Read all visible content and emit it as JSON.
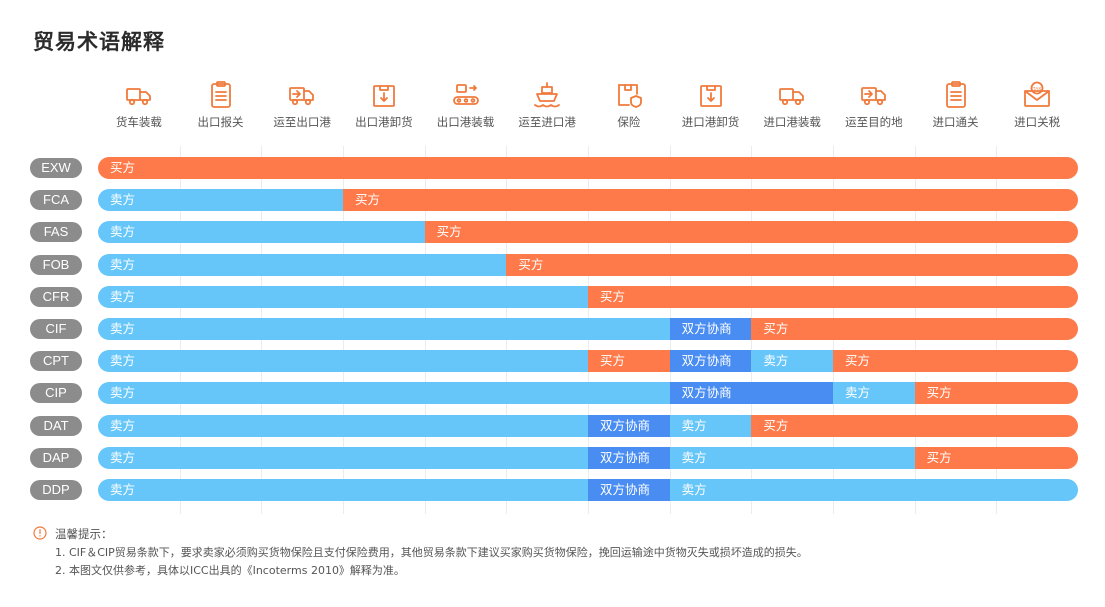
{
  "title": "贸易术语解释",
  "colors": {
    "seller": "#66c6f9",
    "buyer": "#ff7a4a",
    "both": "#4a8df2",
    "term_pill": "#8c8c8c",
    "icon": "#f07a3c"
  },
  "labels": {
    "seller": "卖方",
    "buyer": "买方",
    "both": "双方协商"
  },
  "steps": [
    {
      "label": "货车装载",
      "icon": "truck-icon"
    },
    {
      "label": "出口报关",
      "icon": "clipboard-icon"
    },
    {
      "label": "运至出口港",
      "icon": "truck-arrow-icon"
    },
    {
      "label": "出口港卸货",
      "icon": "box-down-icon"
    },
    {
      "label": "出口港装载",
      "icon": "conveyor-icon"
    },
    {
      "label": "运至进口港",
      "icon": "ship-icon"
    },
    {
      "label": "保险",
      "icon": "shield-box-icon"
    },
    {
      "label": "进口港卸货",
      "icon": "box-down-icon"
    },
    {
      "label": "进口港装载",
      "icon": "truck-icon"
    },
    {
      "label": "运至目的地",
      "icon": "truck-arrow-icon"
    },
    {
      "label": "进口通关",
      "icon": "clipboard-icon"
    },
    {
      "label": "进口关税",
      "icon": "tax-envelope-icon"
    }
  ],
  "terms": [
    {
      "code": "EXW",
      "segments": [
        [
          "buyer",
          12
        ]
      ]
    },
    {
      "code": "FCA",
      "segments": [
        [
          "seller",
          3
        ],
        [
          "buyer",
          9
        ]
      ]
    },
    {
      "code": "FAS",
      "segments": [
        [
          "seller",
          4
        ],
        [
          "buyer",
          8
        ]
      ]
    },
    {
      "code": "FOB",
      "segments": [
        [
          "seller",
          5
        ],
        [
          "buyer",
          7
        ]
      ]
    },
    {
      "code": "CFR",
      "segments": [
        [
          "seller",
          6
        ],
        [
          "buyer",
          6
        ]
      ]
    },
    {
      "code": "CIF",
      "segments": [
        [
          "seller",
          7
        ],
        [
          "both",
          1
        ],
        [
          "buyer",
          4
        ]
      ]
    },
    {
      "code": "CPT",
      "segments": [
        [
          "seller",
          6
        ],
        [
          "buyer",
          1
        ],
        [
          "both",
          1
        ],
        [
          "seller",
          1
        ],
        [
          "buyer",
          3
        ]
      ]
    },
    {
      "code": "CIP",
      "segments": [
        [
          "seller",
          7
        ],
        [
          "both",
          2
        ],
        [
          "seller",
          1
        ],
        [
          "buyer",
          2
        ]
      ]
    },
    {
      "code": "DAT",
      "segments": [
        [
          "seller",
          6
        ],
        [
          "both",
          1
        ],
        [
          "seller",
          1
        ],
        [
          "buyer",
          4
        ]
      ]
    },
    {
      "code": "DAP",
      "segments": [
        [
          "seller",
          6
        ],
        [
          "both",
          1
        ],
        [
          "seller",
          3
        ],
        [
          "buyer",
          2
        ]
      ]
    },
    {
      "code": "DDP",
      "segments": [
        [
          "seller",
          6
        ],
        [
          "both",
          1
        ],
        [
          "seller",
          5
        ]
      ]
    }
  ],
  "notes": {
    "title": "温馨提示：",
    "lines": [
      "1. CIF＆CIP贸易条款下，要求卖家必须购买货物保险且支付保险费用，其他贸易条款下建议买家购买货物保险，挽回运输途中货物灭失或损坏造成的损失。",
      "2. 本图文仅供参考，具体以ICC出具的《Incoterms 2010》解释为准。"
    ]
  }
}
